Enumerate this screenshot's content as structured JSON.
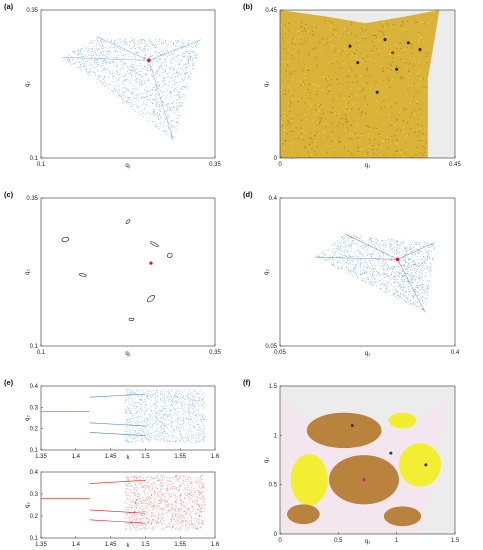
{
  "chart_data": [
    {
      "id": "a",
      "panel_label": "(a)",
      "type": "scatter",
      "xlabel": "q₁",
      "ylabel": "q₂",
      "xlim": [
        0.1,
        0.35
      ],
      "ylim": [
        0.1,
        0.35
      ],
      "xticks": [
        "0.1",
        "0.35"
      ],
      "yticks": [
        "0.1",
        "0.35"
      ],
      "colors": {
        "points": "#4a8fd6",
        "marker": "#d81b3a"
      },
      "shape": [
        [
          0.13,
          0.27
        ],
        [
          0.18,
          0.305
        ],
        [
          0.33,
          0.3
        ],
        [
          0.29,
          0.13
        ]
      ],
      "marker": [
        0.255,
        0.265
      ]
    },
    {
      "id": "b",
      "panel_label": "(b)",
      "type": "heatmap",
      "xlabel": "q₁",
      "ylabel": "q₂",
      "xlim": [
        0,
        0.45
      ],
      "ylim": [
        0,
        0.45
      ],
      "xticks": [
        "0",
        "0.45"
      ],
      "yticks": [
        "0",
        "0.45"
      ],
      "colors": {
        "fill": "#d9b23a",
        "bright": "#f7e82a",
        "dark": "#9a7a1e",
        "bg": "#ececec",
        "points": "#222244",
        "marker": "#d81b3a"
      },
      "shape": [
        [
          0,
          0.45
        ],
        [
          0.12,
          0.43
        ],
        [
          0.22,
          0.41
        ],
        [
          0.32,
          0.43
        ],
        [
          0.41,
          0.45
        ],
        [
          0.38,
          0.24
        ],
        [
          0.38,
          0
        ],
        [
          0,
          0
        ]
      ],
      "dots": [
        [
          0.27,
          0.36
        ],
        [
          0.33,
          0.35
        ],
        [
          0.36,
          0.33
        ],
        [
          0.18,
          0.34
        ],
        [
          0.2,
          0.29
        ],
        [
          0.3,
          0.27
        ],
        [
          0.25,
          0.2
        ]
      ],
      "marker": [
        0.29,
        0.32
      ]
    },
    {
      "id": "c",
      "panel_label": "(c)",
      "type": "scatter",
      "xlabel": "q₁",
      "ylabel": "q₂",
      "xlim": [
        0.1,
        0.35
      ],
      "ylim": [
        0.1,
        0.35
      ],
      "xticks": [
        "0.1",
        "0.35"
      ],
      "yticks": [
        "0.1",
        "0.35"
      ],
      "colors": {
        "curves": "#111111",
        "marker": "#d81b3a"
      },
      "islands": [
        [
          0.225,
          0.31
        ],
        [
          0.135,
          0.28
        ],
        [
          0.263,
          0.272
        ],
        [
          0.285,
          0.253
        ],
        [
          0.16,
          0.22
        ],
        [
          0.258,
          0.18
        ],
        [
          0.23,
          0.145
        ]
      ],
      "marker": [
        0.258,
        0.24
      ]
    },
    {
      "id": "d",
      "panel_label": "(d)",
      "type": "scatter",
      "xlabel": "q₁",
      "ylabel": "q₂",
      "xlim": [
        0.05,
        0.4
      ],
      "ylim": [
        0.05,
        0.4
      ],
      "xticks": [
        "0.05",
        "0.4"
      ],
      "yticks": [
        "0.05",
        "0.4"
      ],
      "colors": {
        "points": "#4a8fd6",
        "dark": "#2c5f99",
        "marker": "#d81b3a"
      },
      "shape": [
        [
          0.12,
          0.26
        ],
        [
          0.18,
          0.315
        ],
        [
          0.36,
          0.295
        ],
        [
          0.34,
          0.13
        ]
      ],
      "marker": [
        0.285,
        0.255
      ]
    },
    {
      "id": "e1",
      "panel_label": "(e)",
      "type": "scatter",
      "xlabel": "k",
      "ylabel": "q₂",
      "xlim": [
        1.35,
        1.6
      ],
      "ylim": [
        0.05,
        0.45
      ],
      "xticks": [
        "1.35",
        "1.4",
        "1.45",
        "1.5",
        "1.55",
        "1.6"
      ],
      "yticks": [
        "0.1",
        "0.2",
        "0.3",
        "0.4"
      ],
      "colors": {
        "points": "#3a86d0"
      },
      "branches_start": 0.38,
      "branches_low": [
        0.29
      ],
      "branches_high": [
        0.38,
        0.22,
        0.16
      ]
    },
    {
      "id": "e2",
      "panel_label": "",
      "type": "scatter",
      "xlabel": "k",
      "ylabel": "q₂",
      "xlim": [
        1.35,
        1.6
      ],
      "ylim": [
        0.05,
        0.45
      ],
      "xticks": [
        "1.35",
        "1.4",
        "1.45",
        "1.5",
        "1.55",
        "1.6"
      ],
      "yticks": [
        "0.1",
        "0.2",
        "0.3",
        "0.4"
      ],
      "colors": {
        "points": "#d81b1b"
      },
      "branches_start": 0.38,
      "branches_low": [
        0.29
      ],
      "branches_high": [
        0.38,
        0.22,
        0.16
      ]
    },
    {
      "id": "f",
      "panel_label": "(f)",
      "type": "heatmap",
      "xlabel": "q₁",
      "ylabel": "q₂",
      "xlim": [
        0,
        1.5
      ],
      "ylim": [
        0,
        1.5
      ],
      "xticks": [
        "0",
        "0.5",
        "1",
        "1.5"
      ],
      "yticks": [
        "0",
        "0.5",
        "1",
        "1.5"
      ],
      "colors": {
        "bg": "#f3e6ef",
        "outside": "#ececec",
        "brown": "#b3782a",
        "yellow": "#f2ee1c",
        "points": "#33335a",
        "marker": "#d81b7a"
      },
      "dots": [
        [
          0.62,
          1.1
        ],
        [
          1.25,
          0.7
        ],
        [
          0.95,
          0.82
        ]
      ],
      "marker": [
        0.72,
        0.55
      ]
    }
  ]
}
